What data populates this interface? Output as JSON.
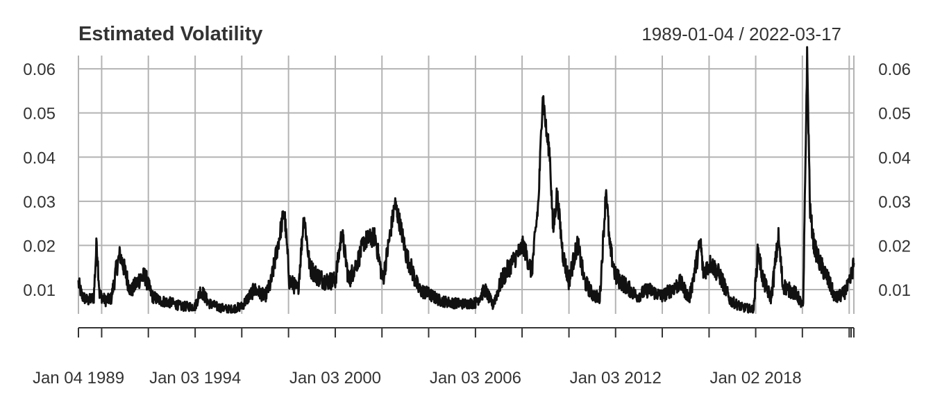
{
  "chart_data": {
    "type": "line",
    "title": "Estimated Volatility",
    "date_range": "1989-01-04 / 2022-03-17",
    "xlabel": "",
    "ylabel": "",
    "xlim": [
      "1989-01-04",
      "2022-03-17"
    ],
    "ylim": [
      0.0045,
      0.063
    ],
    "y_ticks": [
      0.06,
      0.05,
      0.04,
      0.03,
      0.02,
      0.01
    ],
    "y_tick_labels": [
      "0.06",
      "0.05",
      "0.04",
      "0.03",
      "0.02",
      "0.01"
    ],
    "x_tick_labels": [
      {
        "date": "1989-01-04",
        "label": "Jan 04 1989"
      },
      {
        "date": "1994-01-03",
        "label": "Jan 03 1994"
      },
      {
        "date": "2000-01-03",
        "label": "Jan 03 2000"
      },
      {
        "date": "2006-01-03",
        "label": "Jan 03 2006"
      },
      {
        "date": "2012-01-03",
        "label": "Jan 03 2012"
      },
      {
        "date": "2018-01-02",
        "label": "Jan 02 2018"
      }
    ],
    "x_gridlines": [
      "1989-01-04",
      "1990-01-02",
      "1992-01-02",
      "1994-01-03",
      "1996-01-02",
      "1998-01-02",
      "2000-01-03",
      "2002-01-02",
      "2004-01-02",
      "2006-01-03",
      "2008-01-02",
      "2010-01-04",
      "2012-01-03",
      "2014-01-02",
      "2016-01-04",
      "2018-01-02",
      "2020-01-02",
      "2022-01-03"
    ],
    "grid": true,
    "series": [
      {
        "values": [
          [
            "1989-01-04",
            0.0115
          ],
          [
            "1989-03-01",
            0.0085
          ],
          [
            "1989-06-01",
            0.0075
          ],
          [
            "1989-09-01",
            0.0082
          ],
          [
            "1989-10-16",
            0.021
          ],
          [
            "1989-12-01",
            0.009
          ],
          [
            "1990-03-01",
            0.0075
          ],
          [
            "1990-06-01",
            0.008
          ],
          [
            "1990-08-24",
            0.015
          ],
          [
            "1990-10-15",
            0.018
          ],
          [
            "1991-01-15",
            0.0135
          ],
          [
            "1991-04-01",
            0.0095
          ],
          [
            "1991-08-19",
            0.0125
          ],
          [
            "1991-11-15",
            0.013
          ],
          [
            "1992-03-01",
            0.0085
          ],
          [
            "1992-07-01",
            0.0075
          ],
          [
            "1993-01-01",
            0.007
          ],
          [
            "1993-06-01",
            0.0062
          ],
          [
            "1994-01-03",
            0.0062
          ],
          [
            "1994-04-01",
            0.01
          ],
          [
            "1994-08-01",
            0.007
          ],
          [
            "1995-01-01",
            0.006
          ],
          [
            "1995-07-01",
            0.0055
          ],
          [
            "1996-01-01",
            0.0062
          ],
          [
            "1996-07-15",
            0.01
          ],
          [
            "1997-01-01",
            0.0085
          ],
          [
            "1997-04-01",
            0.0115
          ],
          [
            "1997-10-28",
            0.028
          ],
          [
            "1998-01-15",
            0.012
          ],
          [
            "1998-06-01",
            0.01
          ],
          [
            "1998-09-01",
            0.027
          ],
          [
            "1998-12-01",
            0.015
          ],
          [
            "1999-04-01",
            0.013
          ],
          [
            "1999-08-01",
            0.012
          ],
          [
            "2000-01-03",
            0.012
          ],
          [
            "2000-04-15",
            0.023
          ],
          [
            "2000-08-01",
            0.012
          ],
          [
            "2001-01-01",
            0.017
          ],
          [
            "2001-04-01",
            0.021
          ],
          [
            "2001-09-17",
            0.022
          ],
          [
            "2002-01-15",
            0.012
          ],
          [
            "2002-07-24",
            0.0295
          ],
          [
            "2002-10-10",
            0.025
          ],
          [
            "2003-01-15",
            0.018
          ],
          [
            "2003-04-01",
            0.015
          ],
          [
            "2003-08-01",
            0.01
          ],
          [
            "2004-01-01",
            0.009
          ],
          [
            "2004-07-01",
            0.0075
          ],
          [
            "2005-01-01",
            0.007
          ],
          [
            "2005-07-01",
            0.0068
          ],
          [
            "2006-01-03",
            0.007
          ],
          [
            "2006-06-01",
            0.01
          ],
          [
            "2006-10-01",
            0.0065
          ],
          [
            "2007-02-27",
            0.0125
          ],
          [
            "2007-08-15",
            0.0165
          ],
          [
            "2008-01-22",
            0.02
          ],
          [
            "2008-06-01",
            0.014
          ],
          [
            "2008-09-15",
            0.03
          ],
          [
            "2008-11-20",
            0.0545
          ],
          [
            "2009-01-20",
            0.045
          ],
          [
            "2009-03-10",
            0.041
          ],
          [
            "2009-05-01",
            0.023
          ],
          [
            "2009-07-01",
            0.032
          ],
          [
            "2009-10-01",
            0.018
          ],
          [
            "2010-01-01",
            0.012
          ],
          [
            "2010-05-20",
            0.0205
          ],
          [
            "2010-09-01",
            0.012
          ],
          [
            "2011-01-01",
            0.009
          ],
          [
            "2011-05-01",
            0.008
          ],
          [
            "2011-08-09",
            0.033
          ],
          [
            "2011-10-01",
            0.02
          ],
          [
            "2012-01-03",
            0.013
          ],
          [
            "2012-06-01",
            0.011
          ],
          [
            "2012-12-01",
            0.0085
          ],
          [
            "2013-06-01",
            0.01
          ],
          [
            "2014-01-01",
            0.0085
          ],
          [
            "2014-10-15",
            0.0115
          ],
          [
            "2015-03-01",
            0.008
          ],
          [
            "2015-08-24",
            0.021
          ],
          [
            "2015-10-01",
            0.014
          ],
          [
            "2016-02-01",
            0.016
          ],
          [
            "2016-06-27",
            0.013
          ],
          [
            "2016-12-01",
            0.0075
          ],
          [
            "2017-06-01",
            0.006
          ],
          [
            "2017-12-01",
            0.0055
          ],
          [
            "2018-02-06",
            0.019
          ],
          [
            "2018-05-01",
            0.012
          ],
          [
            "2018-09-01",
            0.008
          ],
          [
            "2018-12-24",
            0.022
          ],
          [
            "2019-03-01",
            0.011
          ],
          [
            "2019-06-01",
            0.01
          ],
          [
            "2019-10-01",
            0.009
          ],
          [
            "2020-01-15",
            0.006
          ],
          [
            "2020-03-16",
            0.063
          ],
          [
            "2020-05-01",
            0.028
          ],
          [
            "2020-07-01",
            0.02
          ],
          [
            "2020-10-01",
            0.016
          ],
          [
            "2021-01-15",
            0.013
          ],
          [
            "2021-06-01",
            0.008
          ],
          [
            "2021-10-01",
            0.009
          ],
          [
            "2022-01-03",
            0.011
          ],
          [
            "2022-03-17",
            0.016
          ]
        ]
      }
    ]
  }
}
